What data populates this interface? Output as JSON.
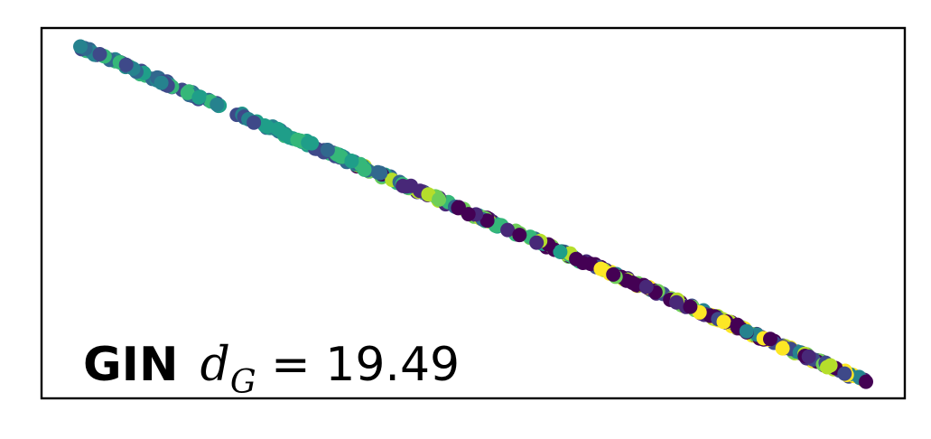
{
  "chart_data": {
    "type": "scatter",
    "title": "",
    "xlabel": "",
    "ylabel": "",
    "xticks": [],
    "yticks": [],
    "grid": false,
    "legend": "none",
    "colormap": "viridis",
    "palette": [
      "#440154",
      "#482878",
      "#3e4989",
      "#31688e",
      "#26828e",
      "#1f9e89",
      "#35b779",
      "#6ece58",
      "#b5de2b",
      "#fde725"
    ],
    "xlim": [
      0,
      1
    ],
    "ylim": [
      0,
      1
    ],
    "trend": {
      "x_start": 0.045,
      "y_start": 0.95,
      "x_end": 0.955,
      "y_end": 0.045
    },
    "point_count": 420,
    "annotation": {
      "model": "GIN",
      "symbol": "d",
      "subscript": "G",
      "equals": " = ",
      "value": "19.49"
    }
  }
}
